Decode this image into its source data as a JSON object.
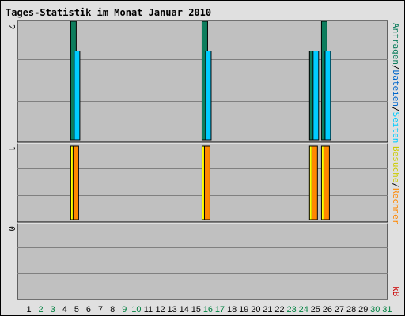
{
  "chart_data": {
    "type": "bar",
    "title": "Tages-Statistik im Monat Januar 2010",
    "categories": [
      "1",
      "2",
      "3",
      "4",
      "5",
      "6",
      "7",
      "8",
      "9",
      "10",
      "11",
      "12",
      "13",
      "14",
      "15",
      "16",
      "17",
      "18",
      "19",
      "20",
      "21",
      "22",
      "23",
      "24",
      "25",
      "26",
      "27",
      "28",
      "29",
      "30",
      "31"
    ],
    "weekend_days": [
      2,
      3,
      9,
      10,
      16,
      17,
      23,
      24,
      30,
      31
    ],
    "panels": [
      {
        "name": "top",
        "ylim": [
          0,
          2
        ],
        "y_tick_label": "2",
        "series": [
          {
            "name": "Anfragen",
            "color": "#0d7d5d",
            "values": [
              0,
              0,
              0,
              0,
              2,
              0,
              0,
              0,
              0,
              0,
              0,
              0,
              0,
              0,
              0,
              2,
              0,
              0,
              0,
              0,
              0,
              0,
              0,
              0,
              1.5,
              2,
              0,
              0,
              0,
              0,
              0
            ]
          },
          {
            "name": "Dateien",
            "color": "#00ccff",
            "values": [
              0,
              0,
              0,
              0,
              1.5,
              0,
              0,
              0,
              0,
              0,
              0,
              0,
              0,
              0,
              0,
              1.5,
              0,
              0,
              0,
              0,
              0,
              0,
              0,
              0,
              1.5,
              1.5,
              0,
              0,
              0,
              0,
              0
            ]
          },
          {
            "name": "Seiten",
            "color": "#00ccff",
            "values": []
          }
        ]
      },
      {
        "name": "middle",
        "ylim": [
          0,
          1
        ],
        "y_tick_label": "1",
        "series": [
          {
            "name": "Besuche",
            "color": "#ffff00",
            "values": [
              0,
              0,
              0,
              0,
              1,
              0,
              0,
              0,
              0,
              0,
              0,
              0,
              0,
              0,
              0,
              1,
              0,
              0,
              0,
              0,
              0,
              0,
              0,
              0,
              1,
              1,
              0,
              0,
              0,
              0,
              0
            ]
          },
          {
            "name": "Rechner",
            "color": "#ff8800",
            "values": [
              0,
              0,
              0,
              0,
              1,
              0,
              0,
              0,
              0,
              0,
              0,
              0,
              0,
              0,
              0,
              1,
              0,
              0,
              0,
              0,
              0,
              0,
              0,
              0,
              1,
              1,
              0,
              0,
              0,
              0,
              0
            ]
          }
        ]
      },
      {
        "name": "bottom",
        "ylim": [
          0,
          1
        ],
        "y_tick_label": "0",
        "series": [
          {
            "name": "kB",
            "color": "#cc0000",
            "values": []
          }
        ]
      }
    ],
    "right_labels": [
      {
        "text": "Anfragen",
        "color": "#0d7d5d"
      },
      {
        "text": "/",
        "color": "#000000"
      },
      {
        "text": "Dateien",
        "color": "#0066cc"
      },
      {
        "text": "/",
        "color": "#000000"
      },
      {
        "text": "Seiten",
        "color": "#00ccff"
      },
      {
        "text": "Besuche",
        "color": "#cccc00"
      },
      {
        "text": "/",
        "color": "#000000"
      },
      {
        "text": "Rechner",
        "color": "#ff8800"
      },
      {
        "text": "kB",
        "color": "#cc0000"
      }
    ],
    "colors": {
      "title": "#0000cc",
      "plot_bg": "#c0c0c0",
      "frame_bg": "#e0e0e0",
      "grid": "#808080",
      "day_weekday": "#000000",
      "day_weekend": "#008040"
    },
    "grid": true,
    "legend_position": "right-vertical"
  }
}
